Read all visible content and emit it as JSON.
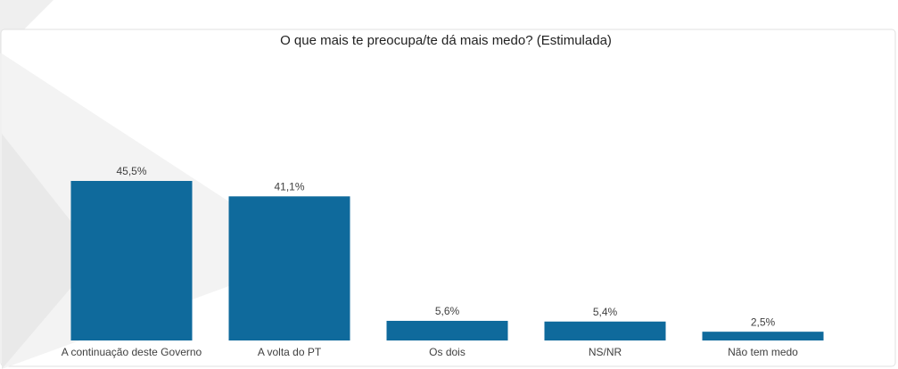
{
  "chart_data": {
    "type": "bar",
    "title": "O que mais te preocupa/te dá mais medo? (Estimulada)",
    "categories": [
      "A continuação deste Governo",
      "A volta do PT",
      "Os dois",
      "NS/NR",
      "Não tem medo"
    ],
    "values": [
      45.5,
      41.1,
      5.6,
      5.4,
      2.5
    ],
    "value_labels": [
      "45,5%",
      "41,1%",
      "5,6%",
      "5,4%",
      "2,5%"
    ],
    "color": "#0f6a9c"
  }
}
